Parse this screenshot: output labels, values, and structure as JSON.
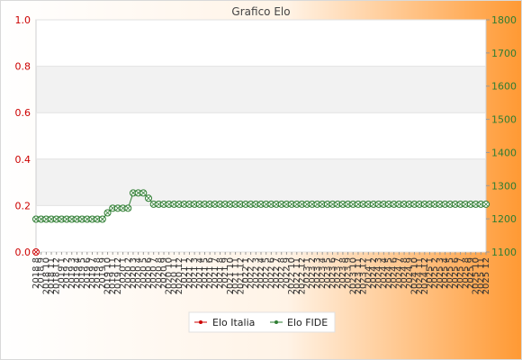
{
  "chart_data": {
    "type": "line",
    "title": "Grafico Elo",
    "xlabel": "",
    "ylabel_left": "",
    "ylabel_right": "",
    "y_left": {
      "ticks": [
        "0.0",
        "0.2",
        "0.4",
        "0.6",
        "0.8",
        "1.0"
      ],
      "range": [
        0,
        1
      ]
    },
    "y_right": {
      "ticks": [
        "1100",
        "1200",
        "1300",
        "1400",
        "1500",
        "1600",
        "1700",
        "1800"
      ],
      "range": [
        1100,
        1800
      ]
    },
    "grid": true,
    "legend_position": "bottom",
    "categories": [
      "2018 8",
      "2018 9",
      "2018 10",
      "2018 11",
      "2018 12",
      "2019 1",
      "2019 2",
      "2019 3",
      "2019 4",
      "2019 5",
      "2019 6",
      "2019 7",
      "2019 8",
      "2019 9",
      "2019 10",
      "2019 11",
      "2019 12",
      "2020 1",
      "2020 2",
      "2020 3",
      "2020 4",
      "2020 5",
      "2020 6",
      "2020 7",
      "2020 8",
      "2020 9",
      "2020 10",
      "2020 11",
      "2020 12",
      "2021 1",
      "2021 2",
      "2021 3",
      "2021 4",
      "2021 5",
      "2021 6",
      "2021 7",
      "2021 8",
      "2021 9",
      "2021 10",
      "2021 11",
      "2021 12",
      "2022 1",
      "2022 2",
      "2022 3",
      "2022 4",
      "2022 5",
      "2022 6",
      "2022 7",
      "2022 8",
      "2022 9",
      "2022 10",
      "2022 11",
      "2022 12",
      "2023 1",
      "2023 2",
      "2023 3",
      "2023 4",
      "2023 5",
      "2023 6",
      "2023 7",
      "2023 8",
      "2023 9",
      "2023 10",
      "2023 11",
      "2023 12",
      "2024 1",
      "2024 2",
      "2024 3",
      "2024 4",
      "2024 5",
      "2024 6",
      "2024 7",
      "2024 8",
      "2024 9",
      "2024 10",
      "2024 11",
      "2024 12",
      "2025 1",
      "2025 2",
      "2025 3",
      "2025 4",
      "2025 5",
      "2025 6",
      "2025 7",
      "2025 8",
      "2025 9",
      "2025 10",
      "2025 11",
      "2025 12"
    ],
    "series": [
      {
        "name": "Elo Italia",
        "axis": "left",
        "color": "#cc0000",
        "values": [
          0,
          null,
          null,
          null,
          null,
          null,
          null,
          null,
          null,
          null,
          null,
          null,
          null,
          null,
          null,
          null,
          null,
          null,
          null,
          null,
          null,
          null,
          null,
          null,
          null,
          null,
          null,
          null,
          null,
          null,
          null,
          null,
          null,
          null,
          null,
          null,
          null,
          null,
          null,
          null,
          null,
          null,
          null,
          null,
          null,
          null,
          null,
          null,
          null,
          null,
          null,
          null,
          null,
          null,
          null,
          null,
          null,
          null,
          null,
          null,
          null,
          null,
          null,
          null,
          null,
          null,
          null,
          null,
          null,
          null,
          null,
          null,
          null,
          null,
          null,
          null,
          null,
          null,
          null,
          null,
          null,
          null,
          null,
          null,
          null,
          null,
          null,
          null,
          null
        ]
      },
      {
        "name": "Elo FIDE",
        "axis": "right",
        "color": "#2e7d32",
        "values": [
          1199,
          1199,
          1199,
          1199,
          1199,
          1199,
          1199,
          1199,
          1199,
          1199,
          1199,
          1199,
          1199,
          1199,
          1218,
          1232,
          1232,
          1232,
          1232,
          1278,
          1278,
          1278,
          1262,
          1244,
          1244,
          1244,
          1244,
          1244,
          1244,
          1244,
          1244,
          1244,
          1244,
          1244,
          1244,
          1244,
          1244,
          1244,
          1244,
          1244,
          1244,
          1244,
          1244,
          1244,
          1244,
          1244,
          1244,
          1244,
          1244,
          1244,
          1244,
          1244,
          1244,
          1244,
          1244,
          1244,
          1244,
          1244,
          1244,
          1244,
          1244,
          1244,
          1244,
          1244,
          1244,
          1244,
          1244,
          1244,
          1244,
          1244,
          1244,
          1244,
          1244,
          1244,
          1244,
          1244,
          1244,
          1244,
          1244,
          1244,
          1244,
          1244,
          1244,
          1244,
          1244,
          1244,
          1244,
          1244,
          1244
        ]
      }
    ]
  }
}
